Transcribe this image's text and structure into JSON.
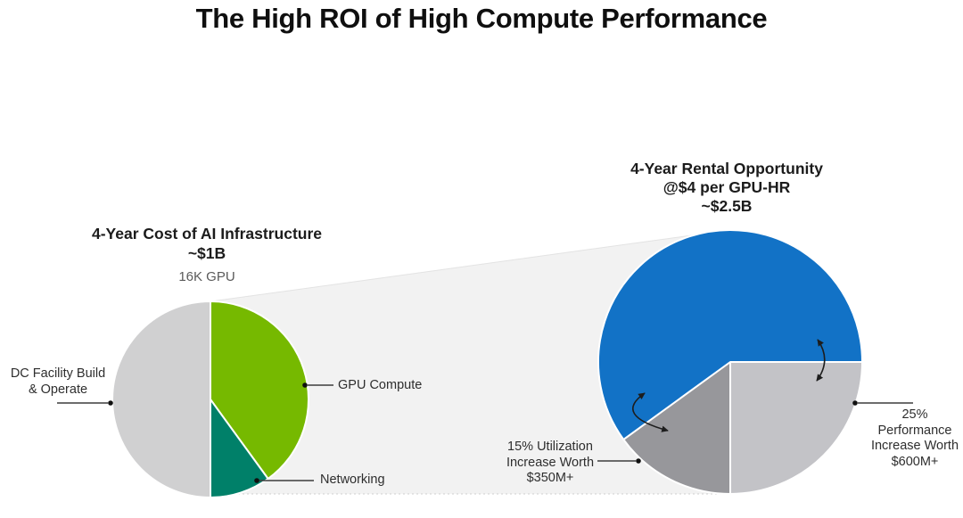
{
  "page": {
    "title": "The High ROI of High Compute Performance"
  },
  "left_chart": {
    "title": "4-Year Cost of AI Infrastructure\n~$1B",
    "subtitle": "16K GPU",
    "labels": {
      "dc_facility": "DC Facility Build\n& Operate",
      "gpu_compute": "GPU Compute",
      "networking": "Networking"
    }
  },
  "right_chart": {
    "title": "4-Year Rental Opportunity\n@$4 per GPU-HR\n~$2.5B",
    "labels": {
      "utilization": "15% Utilization\nIncrease Worth\n$350M+",
      "performance": "25%\nPerformance\nIncrease Worth\n$600M+"
    }
  },
  "colors": {
    "nvidia_green": "#76B900",
    "networking_teal": "#008069",
    "cost_gray": "#D0D0D1",
    "rental_blue": "#1272C6",
    "utilization_gray": "#97979B",
    "performance_gray": "#C3C3C7",
    "funnel_fill": "#F2F2F2"
  },
  "chart_data": [
    {
      "type": "pie",
      "title": "4-Year Cost of AI Infrastructure ~$1B",
      "subtitle": "16K GPU",
      "units": "percent share of ~$1B 4-year cost",
      "start_angle_deg": 0,
      "direction": "clockwise",
      "slices": [
        {
          "label": "GPU Compute",
          "value": 40,
          "color": "#76B900"
        },
        {
          "label": "Networking",
          "value": 10,
          "color": "#008069"
        },
        {
          "label": "DC Facility Build & Operate",
          "value": 50,
          "color": "#D0D0D1"
        }
      ]
    },
    {
      "type": "pie",
      "title": "4-Year Rental Opportunity @$4 per GPU-HR ~$2.5B",
      "units": "percent share of ~$2.5B rental opportunity",
      "start_angle_deg": 90,
      "direction": "clockwise",
      "slices": [
        {
          "label": "25% Performance Increase Worth $600M+",
          "value": 25,
          "color": "#C3C3C7"
        },
        {
          "label": "15% Utilization Increase Worth $350M+",
          "value": 15,
          "color": "#97979B"
        },
        {
          "label": "",
          "value": 60,
          "color": "#1272C6"
        }
      ]
    }
  ]
}
